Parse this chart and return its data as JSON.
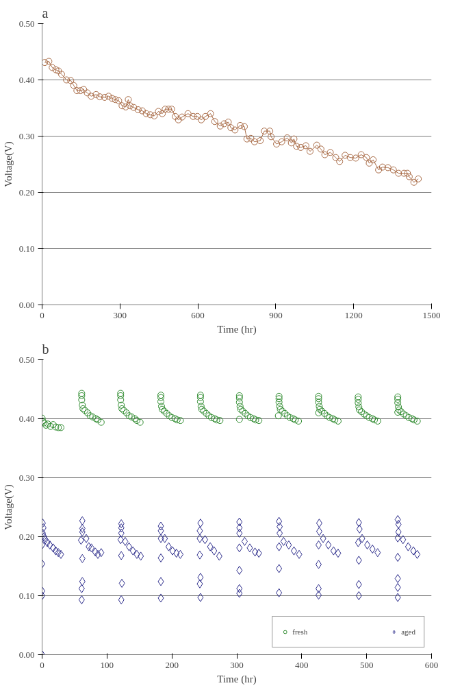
{
  "chart_data": [
    {
      "type": "line",
      "title": "a",
      "xlabel": "Time (hr)",
      "ylabel": "Voltage(V)",
      "marker": "circle",
      "grid": "y",
      "xlim": [
        0,
        1500
      ],
      "xticks": [
        0,
        300,
        600,
        900,
        1200,
        1500
      ],
      "ylim": [
        0,
        0.5
      ],
      "yticks": [
        {
          "value": 0,
          "label": "0.00"
        },
        {
          "value": 0.1,
          "label": "0.10"
        },
        {
          "value": 0.2,
          "label": "0.20"
        },
        {
          "value": 0.3,
          "label": "0.30"
        },
        {
          "value": 0.4,
          "label": "0.40"
        },
        {
          "value": 0.5,
          "label": "0.50"
        }
      ],
      "series": [
        {
          "color": "#a86a45",
          "x": [
            10,
            26,
            39,
            53,
            63,
            75,
            94,
            110,
            122,
            134,
            148,
            160,
            174,
            189,
            208,
            222,
            241,
            256,
            270,
            282,
            295,
            308,
            322,
            332,
            339,
            353,
            370,
            386,
            401,
            417,
            432,
            448,
            463,
            474,
            487,
            499,
            513,
            525,
            539,
            562,
            582,
            598,
            613,
            629,
            649,
            665,
            686,
            701,
            717,
            727,
            743,
            763,
            779,
            789,
            804,
            818,
            840,
            856,
            877,
            882,
            903,
            923,
            944,
            960,
            970,
            980,
            996,
            1016,
            1032,
            1058,
            1074,
            1089,
            1110,
            1131,
            1146,
            1167,
            1187,
            1208,
            1229,
            1249,
            1260,
            1275,
            1296,
            1311,
            1332,
            1353,
            1373,
            1394,
            1407,
            1414,
            1432,
            1449
          ],
          "values": [
            0.431,
            0.433,
            0.422,
            0.418,
            0.416,
            0.41,
            0.4,
            0.399,
            0.39,
            0.381,
            0.381,
            0.383,
            0.377,
            0.371,
            0.374,
            0.37,
            0.369,
            0.371,
            0.367,
            0.365,
            0.363,
            0.354,
            0.352,
            0.365,
            0.354,
            0.351,
            0.347,
            0.345,
            0.34,
            0.338,
            0.336,
            0.344,
            0.34,
            0.348,
            0.348,
            0.348,
            0.335,
            0.329,
            0.334,
            0.34,
            0.335,
            0.335,
            0.329,
            0.335,
            0.34,
            0.326,
            0.318,
            0.322,
            0.325,
            0.315,
            0.311,
            0.319,
            0.317,
            0.295,
            0.296,
            0.29,
            0.292,
            0.309,
            0.309,
            0.299,
            0.286,
            0.29,
            0.297,
            0.288,
            0.295,
            0.282,
            0.28,
            0.283,
            0.273,
            0.284,
            0.277,
            0.267,
            0.271,
            0.262,
            0.255,
            0.266,
            0.262,
            0.261,
            0.267,
            0.262,
            0.252,
            0.258,
            0.24,
            0.245,
            0.244,
            0.24,
            0.234,
            0.234,
            0.234,
            0.228,
            0.218,
            0.224
          ]
        }
      ]
    },
    {
      "type": "scatter",
      "title": "b",
      "xlabel": "Time (hr)",
      "ylabel": "Voltage(V)",
      "grid": "y",
      "legend": "bottom right",
      "xlim": [
        0,
        600
      ],
      "xticks": [
        0,
        100,
        200,
        300,
        400,
        500,
        600
      ],
      "ylim": [
        0,
        0.5
      ],
      "yticks": [
        {
          "value": 0,
          "label": "0.00"
        },
        {
          "value": 0.1,
          "label": "0.10"
        },
        {
          "value": 0.2,
          "label": "0.20"
        },
        {
          "value": 0.3,
          "label": "0.30"
        },
        {
          "value": 0.4,
          "label": "0.40"
        },
        {
          "value": 0.5,
          "label": "0.50"
        }
      ],
      "series": [
        {
          "name": "fresh",
          "color": "#2e8b2e",
          "marker": "circle",
          "x": [
            0,
            1,
            3,
            6,
            9,
            13,
            17,
            21,
            25,
            29,
            61,
            61,
            61,
            62,
            63,
            66,
            70,
            74,
            78,
            83,
            86,
            91,
            121,
            121,
            121,
            122,
            123,
            126,
            130,
            134,
            138,
            143,
            146,
            151,
            183,
            183,
            183,
            184,
            185,
            188,
            192,
            196,
            200,
            205,
            208,
            213,
            244,
            244,
            244,
            245,
            246,
            249,
            253,
            257,
            261,
            266,
            269,
            274,
            304,
            304,
            304,
            305,
            306,
            309,
            313,
            317,
            321,
            326,
            329,
            334,
            304,
            365,
            365,
            365,
            366,
            367,
            370,
            374,
            378,
            382,
            387,
            390,
            395,
            364,
            426,
            426,
            426,
            427,
            428,
            431,
            435,
            439,
            443,
            448,
            451,
            456,
            426,
            487,
            487,
            487,
            488,
            489,
            492,
            496,
            500,
            504,
            509,
            512,
            517,
            548,
            548,
            548,
            549,
            550,
            553,
            557,
            561,
            565,
            570,
            573,
            578,
            548
          ],
          "values": [
            0.401,
            0.396,
            0.393,
            0.389,
            0.391,
            0.387,
            0.39,
            0.386,
            0.385,
            0.385,
            0.443,
            0.439,
            0.432,
            0.423,
            0.417,
            0.414,
            0.41,
            0.405,
            0.403,
            0.4,
            0.398,
            0.394,
            0.443,
            0.439,
            0.432,
            0.423,
            0.417,
            0.414,
            0.41,
            0.405,
            0.403,
            0.4,
            0.397,
            0.394,
            0.44,
            0.436,
            0.429,
            0.421,
            0.416,
            0.413,
            0.409,
            0.405,
            0.402,
            0.4,
            0.398,
            0.397,
            0.44,
            0.436,
            0.429,
            0.421,
            0.416,
            0.413,
            0.409,
            0.405,
            0.402,
            0.4,
            0.398,
            0.397,
            0.439,
            0.435,
            0.428,
            0.421,
            0.416,
            0.413,
            0.409,
            0.405,
            0.402,
            0.4,
            0.398,
            0.397,
            0.399,
            0.438,
            0.434,
            0.428,
            0.421,
            0.416,
            0.413,
            0.409,
            0.405,
            0.402,
            0.4,
            0.398,
            0.396,
            0.405,
            0.438,
            0.434,
            0.428,
            0.421,
            0.416,
            0.413,
            0.409,
            0.405,
            0.402,
            0.4,
            0.398,
            0.396,
            0.41,
            0.437,
            0.433,
            0.427,
            0.42,
            0.415,
            0.412,
            0.408,
            0.405,
            0.402,
            0.4,
            0.398,
            0.396,
            0.437,
            0.433,
            0.427,
            0.42,
            0.415,
            0.412,
            0.408,
            0.405,
            0.402,
            0.4,
            0.398,
            0.396,
            0.411
          ]
        },
        {
          "name": "aged",
          "color": "#2a2a8a",
          "marker": "diamond",
          "x": [
            0,
            0,
            0,
            0,
            0,
            1,
            2,
            1,
            3,
            5,
            8,
            12,
            17,
            21,
            25,
            29,
            62,
            62,
            62,
            60,
            62,
            62,
            61,
            61,
            68,
            72,
            76,
            82,
            86,
            91,
            122,
            122,
            122,
            121,
            122,
            123,
            122,
            128,
            134,
            140,
            146,
            152,
            183,
            183,
            183,
            183,
            183,
            183,
            189,
            195,
            201,
            207,
            213,
            244,
            243,
            243,
            243,
            244,
            243,
            244,
            251,
            259,
            265,
            273,
            304,
            304,
            304,
            304,
            304,
            304,
            304,
            312,
            320,
            328,
            334,
            365,
            366,
            366,
            365,
            365,
            365,
            372,
            380,
            388,
            396,
            427,
            427,
            426,
            426,
            426,
            426,
            433,
            441,
            449,
            456,
            488,
            489,
            487,
            488,
            488,
            488,
            493,
            501,
            509,
            517,
            548,
            549,
            549,
            548,
            548,
            548,
            548,
            548,
            556,
            564,
            572,
            578
          ],
          "values": [
            0.0,
            0.1,
            0.108,
            0.154,
            0.186,
            0.223,
            0.215,
            0.206,
            0.2,
            0.195,
            0.19,
            0.186,
            0.181,
            0.176,
            0.173,
            0.17,
            0.227,
            0.214,
            0.208,
            0.194,
            0.163,
            0.124,
            0.112,
            0.093,
            0.197,
            0.183,
            0.181,
            0.174,
            0.17,
            0.173,
            0.222,
            0.215,
            0.206,
            0.195,
            0.168,
            0.121,
            0.093,
            0.192,
            0.183,
            0.176,
            0.17,
            0.167,
            0.218,
            0.21,
            0.197,
            0.164,
            0.124,
            0.096,
            0.197,
            0.183,
            0.176,
            0.172,
            0.17,
            0.223,
            0.21,
            0.197,
            0.169,
            0.131,
            0.12,
            0.097,
            0.195,
            0.183,
            0.176,
            0.167,
            0.225,
            0.215,
            0.206,
            0.181,
            0.143,
            0.112,
            0.104,
            0.192,
            0.181,
            0.174,
            0.172,
            0.226,
            0.217,
            0.206,
            0.183,
            0.146,
            0.105,
            0.192,
            0.186,
            0.176,
            0.17,
            0.223,
            0.209,
            0.186,
            0.153,
            0.112,
            0.101,
            0.197,
            0.186,
            0.176,
            0.172,
            0.224,
            0.213,
            0.19,
            0.16,
            0.119,
            0.1,
            0.197,
            0.186,
            0.179,
            0.173,
            0.229,
            0.221,
            0.208,
            0.198,
            0.165,
            0.129,
            0.114,
            0.097,
            0.195,
            0.183,
            0.176,
            0.17
          ]
        }
      ]
    }
  ]
}
